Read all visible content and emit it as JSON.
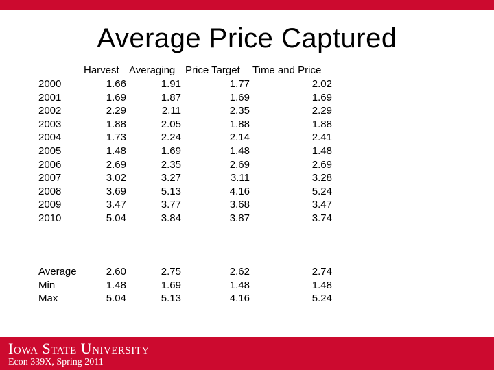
{
  "slide": {
    "title": "Average Price Captured"
  },
  "table": {
    "headers": [
      "Harvest",
      "Averaging",
      "Price Target",
      "Time and Price"
    ],
    "rows": [
      {
        "label": "2000",
        "values": [
          "1.66",
          "1.91",
          "1.77",
          "2.02"
        ]
      },
      {
        "label": "2001",
        "values": [
          "1.69",
          "1.87",
          "1.69",
          "1.69"
        ]
      },
      {
        "label": "2002",
        "values": [
          "2.29",
          "2.11",
          "2.35",
          "2.29"
        ]
      },
      {
        "label": "2003",
        "values": [
          "1.88",
          "2.05",
          "1.88",
          "1.88"
        ]
      },
      {
        "label": "2004",
        "values": [
          "1.73",
          "2.24",
          "2.14",
          "2.41"
        ]
      },
      {
        "label": "2005",
        "values": [
          "1.48",
          "1.69",
          "1.48",
          "1.48"
        ]
      },
      {
        "label": "2006",
        "values": [
          "2.69",
          "2.35",
          "2.69",
          "2.69"
        ]
      },
      {
        "label": "2007",
        "values": [
          "3.02",
          "3.27",
          "3.11",
          "3.28"
        ]
      },
      {
        "label": "2008",
        "values": [
          "3.69",
          "5.13",
          "4.16",
          "5.24"
        ]
      },
      {
        "label": "2009",
        "values": [
          "3.47",
          "3.77",
          "3.68",
          "3.47"
        ]
      },
      {
        "label": "2010",
        "values": [
          "5.04",
          "3.84",
          "3.87",
          "3.74"
        ]
      }
    ],
    "summary": [
      {
        "label": "Average",
        "values": [
          "2.60",
          "2.75",
          "2.62",
          "2.74"
        ]
      },
      {
        "label": "Min",
        "values": [
          "1.48",
          "1.69",
          "1.48",
          "1.48"
        ]
      },
      {
        "label": "Max",
        "values": [
          "5.04",
          "5.13",
          "4.16",
          "5.24"
        ]
      }
    ]
  },
  "footer": {
    "university": "Iowa State University",
    "course": "Econ 339X, Spring 2011"
  },
  "colors": {
    "brand_red": "#cc0a2f",
    "text": "#000000",
    "background": "#ffffff"
  }
}
